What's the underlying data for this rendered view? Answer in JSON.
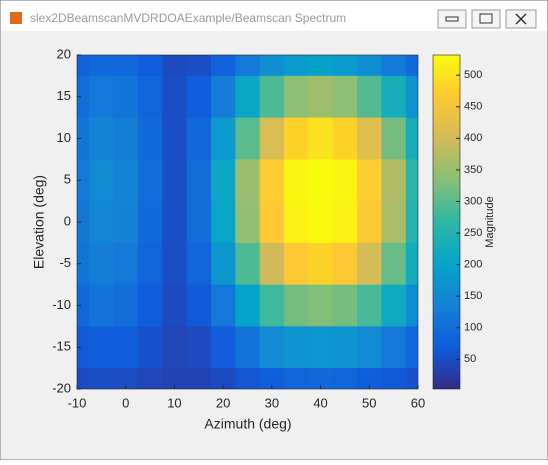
{
  "window_title": "slex2DBeamscanMVDRDOAExample/Beamscan Spectrum",
  "chart_data": {
    "type": "heatmap",
    "xlabel": "Azimuth (deg)",
    "ylabel": "Elevation (deg)",
    "colorbar_label": "Magnitude",
    "x": [
      -10,
      -5,
      0,
      5,
      10,
      15,
      20,
      25,
      30,
      35,
      40,
      45,
      50,
      55,
      60
    ],
    "y": [
      20,
      15,
      10,
      5,
      0,
      -5,
      -10,
      -15,
      -20
    ],
    "z": [
      [
        80,
        95,
        90,
        70,
        45,
        50,
        80,
        120,
        160,
        185,
        195,
        185,
        160,
        125,
        95
      ],
      [
        100,
        120,
        115,
        85,
        50,
        70,
        130,
        210,
        290,
        340,
        355,
        340,
        295,
        230,
        170
      ],
      [
        115,
        140,
        130,
        95,
        50,
        90,
        180,
        300,
        410,
        480,
        500,
        480,
        420,
        320,
        230
      ],
      [
        120,
        150,
        140,
        100,
        50,
        100,
        210,
        350,
        470,
        525,
        532,
        525,
        470,
        370,
        260
      ],
      [
        118,
        145,
        135,
        95,
        50,
        100,
        205,
        345,
        465,
        520,
        530,
        520,
        465,
        365,
        255
      ],
      [
        110,
        130,
        120,
        85,
        50,
        85,
        175,
        290,
        400,
        465,
        480,
        465,
        405,
        310,
        225
      ],
      [
        90,
        110,
        100,
        70,
        45,
        65,
        120,
        200,
        280,
        320,
        330,
        320,
        285,
        220,
        160
      ],
      [
        65,
        75,
        70,
        55,
        40,
        45,
        70,
        110,
        150,
        170,
        175,
        170,
        150,
        120,
        90
      ],
      [
        45,
        50,
        48,
        40,
        35,
        38,
        45,
        60,
        75,
        85,
        90,
        85,
        75,
        65,
        55
      ]
    ],
    "xlim": [
      -10,
      60
    ],
    "ylim": [
      -20,
      20
    ],
    "xticks": [
      -10,
      0,
      10,
      20,
      30,
      40,
      50,
      60
    ],
    "yticks": [
      -20,
      -15,
      -10,
      -5,
      0,
      5,
      10,
      15,
      20
    ],
    "clim": [
      3,
      532
    ],
    "colorbar_ticks": [
      50,
      100,
      150,
      200,
      250,
      300,
      350,
      400,
      450,
      500
    ],
    "colormap": [
      "#352a87",
      "#0f5cdd",
      "#1481d6",
      "#06a4ca",
      "#2eb7a4",
      "#87bf77",
      "#d1bb59",
      "#fec832",
      "#f9fb0e"
    ]
  }
}
